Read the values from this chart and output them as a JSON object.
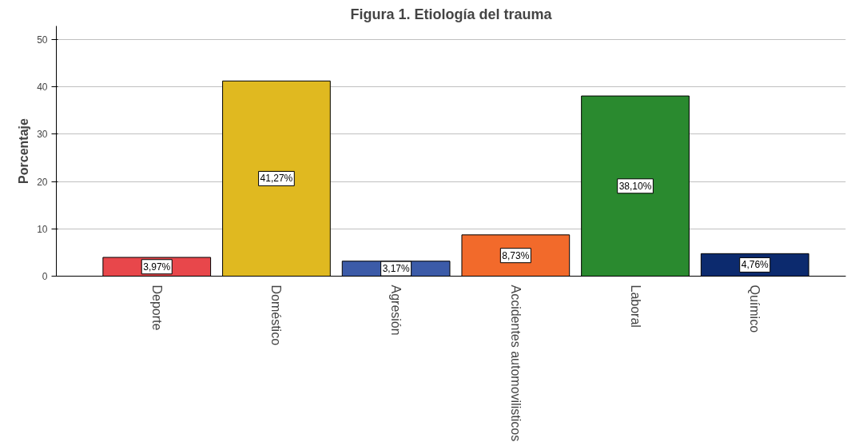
{
  "chart_data": {
    "type": "bar",
    "title": "Figura 1. Etiología del trauma",
    "ylabel": "Porcentaje",
    "categories": [
      "Deporte",
      "Doméstico",
      "Agresión",
      "Accidentes automovilisticos",
      "Laboral",
      "Químico"
    ],
    "values": [
      3.97,
      41.27,
      3.17,
      8.73,
      38.1,
      4.76
    ],
    "colors": [
      "#e8474b",
      "#e0b920",
      "#3c5ba8",
      "#f26a2b",
      "#2a8a2f",
      "#0c2a6e"
    ],
    "value_labels": [
      "3,97%",
      "41,27%",
      "3,17%",
      "8,73%",
      "38,10%",
      "4,76%"
    ],
    "ylim": [
      0,
      52.9
    ],
    "yticks": [
      0,
      10,
      20,
      30,
      40,
      50
    ],
    "grid": "y"
  }
}
